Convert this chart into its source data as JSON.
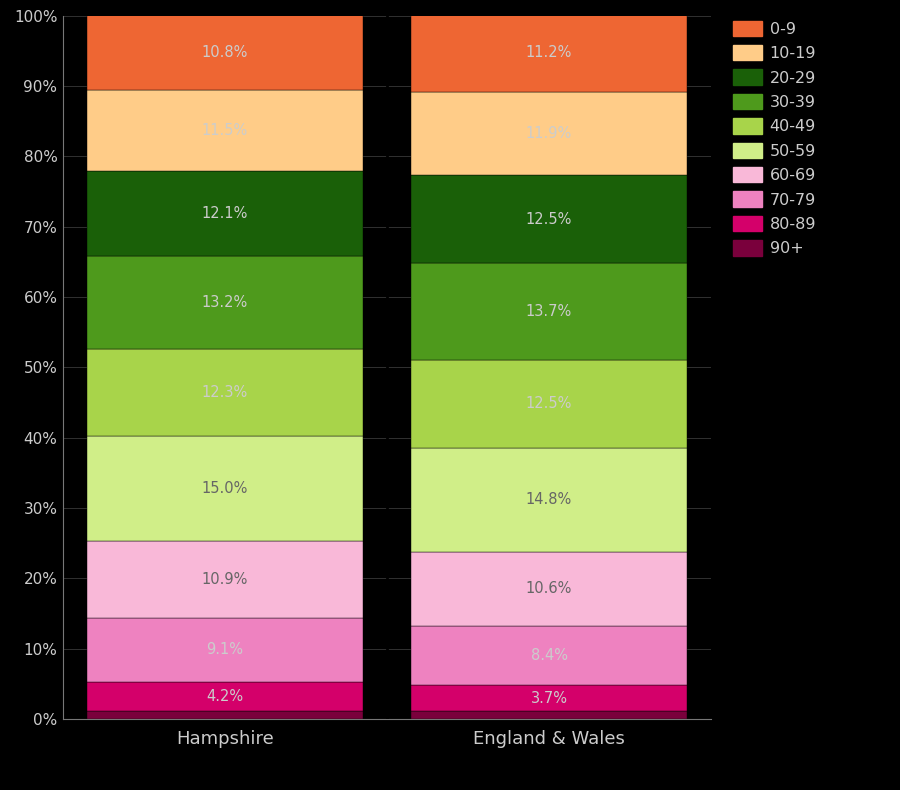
{
  "categories": [
    "Hampshire",
    "England & Wales"
  ],
  "age_groups_bottom_to_top": [
    "90+",
    "80-89",
    "70-79",
    "60-69",
    "50-59",
    "40-49",
    "30-39",
    "20-29",
    "10-19",
    "0-9"
  ],
  "values": {
    "Hampshire": [
      1.1,
      4.2,
      9.1,
      10.9,
      15.0,
      12.3,
      13.2,
      12.1,
      11.5,
      10.8
    ],
    "England & Wales": [
      1.1,
      3.7,
      8.4,
      10.6,
      14.8,
      12.5,
      13.7,
      12.5,
      11.9,
      11.2
    ]
  },
  "labels": {
    "Hampshire": [
      "",
      "4.2%",
      "9.1%",
      "10.9%",
      "15.0%",
      "12.3%",
      "13.2%",
      "12.1%",
      "11.5%",
      "10.8%"
    ],
    "England & Wales": [
      "",
      "3.7%",
      "8.4%",
      "10.6%",
      "14.8%",
      "12.5%",
      "13.7%",
      "12.5%",
      "11.9%",
      "11.2%"
    ]
  },
  "colors": [
    "#7a003c",
    "#d4006a",
    "#ee82c0",
    "#f9b8d8",
    "#d0ee88",
    "#a8d44a",
    "#4e9a1c",
    "#1a6008",
    "#ffcc88",
    "#ee6633"
  ],
  "background_color": "#000000",
  "text_color": "#cccccc",
  "label_text_color_dark": "#cccccc",
  "label_text_color_light": "#666666",
  "legend_labels_order": [
    "0-9",
    "10-19",
    "20-29",
    "30-39",
    "40-49",
    "50-59",
    "60-69",
    "70-79",
    "80-89",
    "90+"
  ],
  "legend_colors_order": [
    "#ee6633",
    "#ffcc88",
    "#1a6008",
    "#4e9a1c",
    "#a8d44a",
    "#d0ee88",
    "#f9b8d8",
    "#ee82c0",
    "#d4006a",
    "#7a003c"
  ],
  "bar_width": 0.85,
  "ylim": [
    0,
    100
  ],
  "figsize": [
    9.0,
    7.9
  ],
  "dpi": 100
}
